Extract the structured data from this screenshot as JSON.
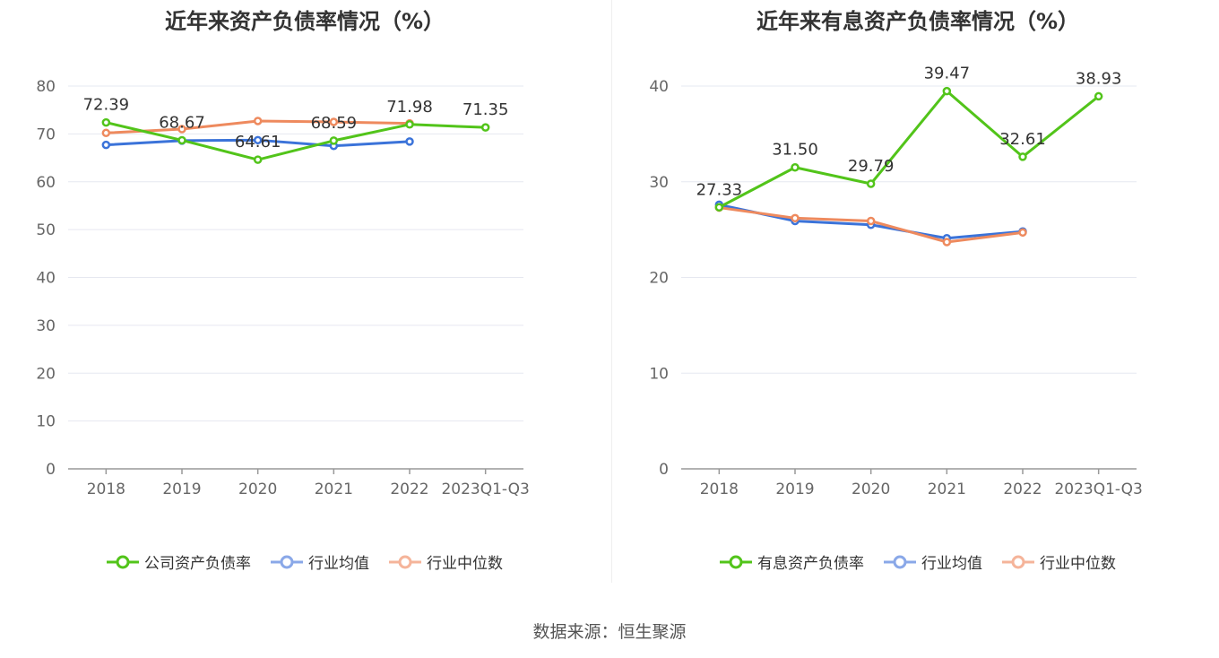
{
  "source": "数据来源：恒生聚源",
  "colors": {
    "company": "#52c41a",
    "avg": "#3b73d9",
    "median": "#ee8a5e",
    "grid": "#e6e8f0",
    "axis": "#999999"
  },
  "chart_data": [
    {
      "type": "line",
      "title": "近年来资产负债率情况（%）",
      "categories": [
        "2018",
        "2019",
        "2020",
        "2021",
        "2022",
        "2023Q1-Q3"
      ],
      "ylim": [
        0,
        80
      ],
      "yticks": [
        "0",
        "10",
        "20",
        "30",
        "40",
        "50",
        "60",
        "70",
        "80"
      ],
      "legend_position": "bottom",
      "series": [
        {
          "name": "公司资产负债率",
          "key": "company",
          "values": [
            72.39,
            68.67,
            64.61,
            68.59,
            71.98,
            71.35
          ],
          "labels": [
            "72.39",
            "68.67",
            "64.61",
            "68.59",
            "71.98",
            "71.35"
          ]
        },
        {
          "name": "行业均值",
          "key": "avg",
          "values": [
            67.7,
            68.6,
            68.7,
            67.5,
            68.4,
            null
          ]
        },
        {
          "name": "行业中位数",
          "key": "median",
          "values": [
            70.2,
            71.0,
            72.7,
            72.5,
            72.2,
            null
          ]
        }
      ]
    },
    {
      "type": "line",
      "title": "近年来有息资产负债率情况（%）",
      "categories": [
        "2018",
        "2019",
        "2020",
        "2021",
        "2022",
        "2023Q1-Q3"
      ],
      "ylim": [
        0,
        40
      ],
      "yticks": [
        "0",
        "10",
        "20",
        "30",
        "40"
      ],
      "legend_position": "bottom",
      "series": [
        {
          "name": "有息资产负债率",
          "key": "company",
          "values": [
            27.33,
            31.5,
            29.79,
            39.47,
            32.61,
            38.93
          ],
          "labels": [
            "27.33",
            "31.50",
            "29.79",
            "39.47",
            "32.61",
            "38.93"
          ]
        },
        {
          "name": "行业均值",
          "key": "avg",
          "values": [
            27.6,
            25.9,
            25.5,
            24.1,
            24.8,
            null
          ]
        },
        {
          "name": "行业中位数",
          "key": "median",
          "values": [
            27.3,
            26.2,
            25.9,
            23.7,
            24.7,
            null
          ]
        }
      ]
    }
  ]
}
